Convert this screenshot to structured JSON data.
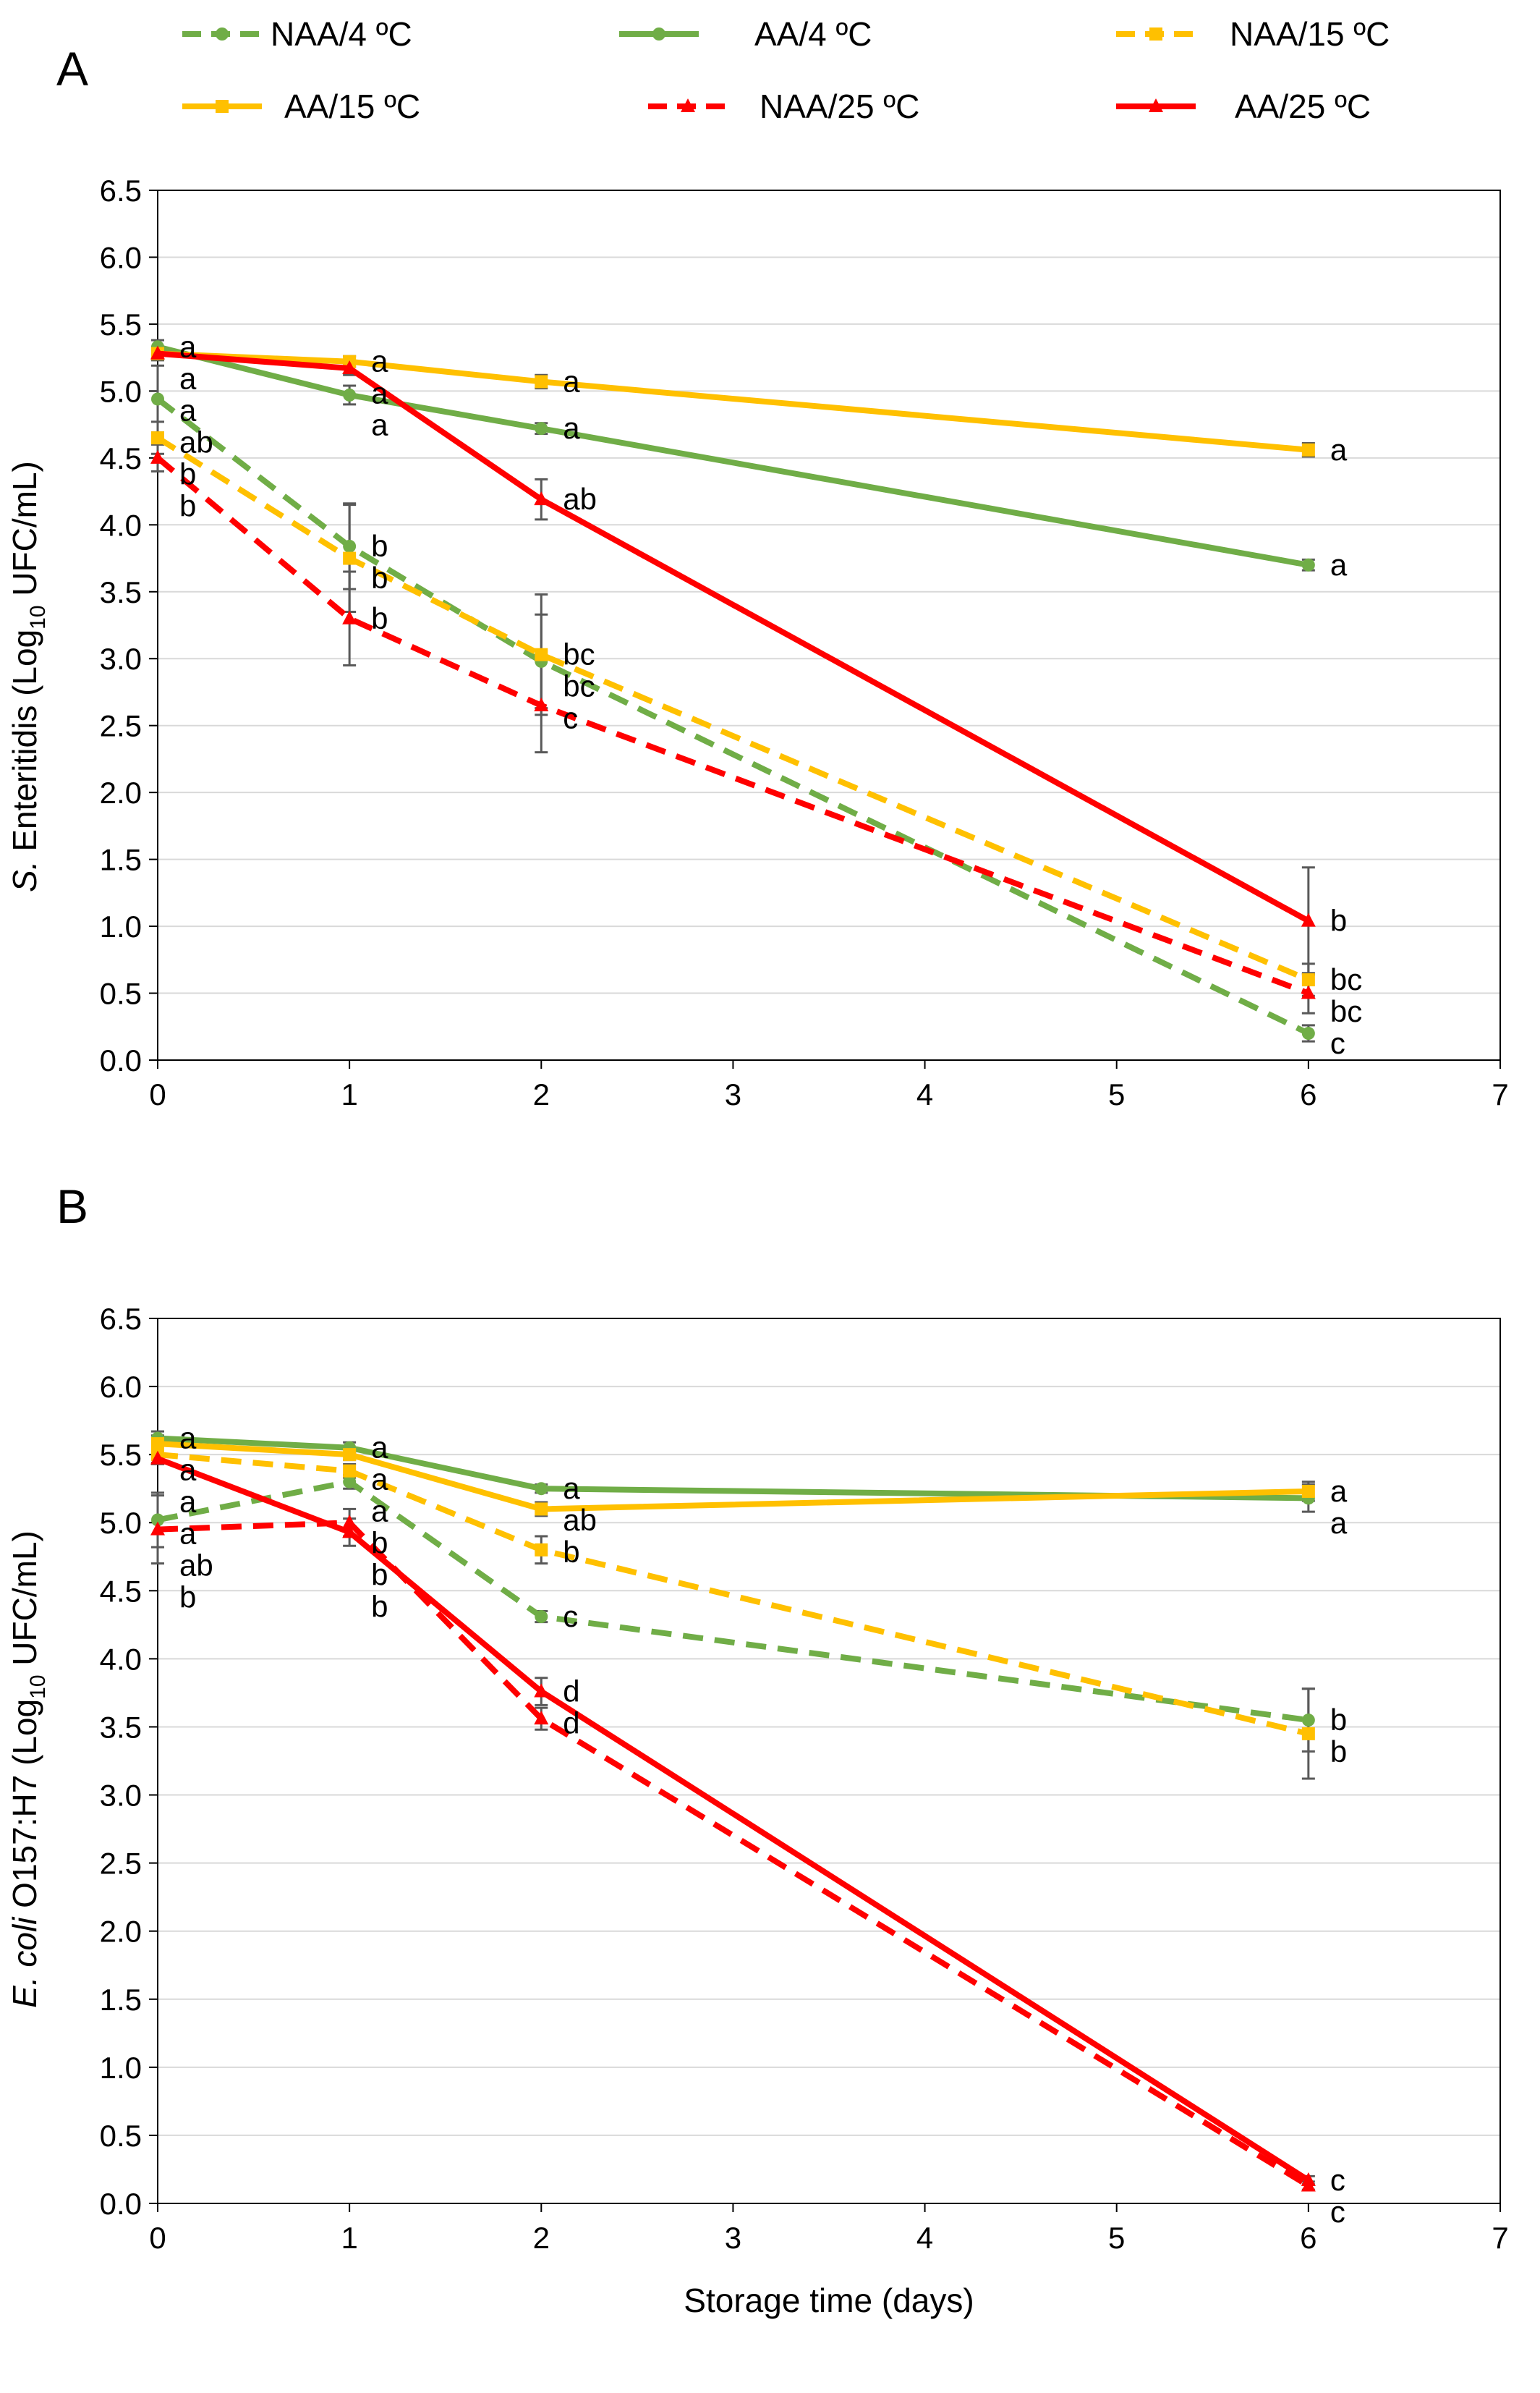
{
  "legend": {
    "entries": [
      {
        "key": "naa4",
        "label": "NAA/4 ºC",
        "color": "#70AD47",
        "dashed": true,
        "marker": "circle"
      },
      {
        "key": "aa4",
        "label": "AA/4 ºC",
        "color": "#70AD47",
        "dashed": false,
        "marker": "circle"
      },
      {
        "key": "naa15",
        "label": "NAA/15 ºC",
        "color": "#FFC000",
        "dashed": true,
        "marker": "square"
      },
      {
        "key": "aa15",
        "label": "AA/15 ºC",
        "color": "#FFC000",
        "dashed": false,
        "marker": "square"
      },
      {
        "key": "naa25",
        "label": "NAA/25 ºC",
        "color": "#FF0000",
        "dashed": true,
        "marker": "triangle"
      },
      {
        "key": "aa25",
        "label": "AA/25 ºC",
        "color": "#FF0000",
        "dashed": false,
        "marker": "triangle"
      }
    ]
  },
  "chart_data": [
    {
      "type": "line",
      "panel_label": "A",
      "ylabel_italic": "S.",
      "ylabel_rest": " Enteritidis (Log",
      "ylabel_sub": "10",
      "ylabel_end": " UFC/mL)",
      "xlabel": "",
      "xlim": [
        0,
        7
      ],
      "ylim": [
        0,
        6.5
      ],
      "xticks": [
        "0",
        "1",
        "2",
        "3",
        "4",
        "5",
        "6",
        "7"
      ],
      "yticks": [
        "0.0",
        "0.5",
        "1.0",
        "1.5",
        "2.0",
        "2.5",
        "3.0",
        "3.5",
        "4.0",
        "4.5",
        "5.0",
        "5.5",
        "6.0",
        "6.5"
      ],
      "x": [
        0,
        1,
        2,
        6
      ],
      "series": [
        {
          "key": "naa4",
          "values": [
            4.94,
            3.84,
            2.98,
            0.2
          ],
          "errors": [
            0.25,
            0.32,
            0.35,
            0.06
          ],
          "letters": [
            "ab",
            "b",
            "bc",
            "c"
          ]
        },
        {
          "key": "aa4",
          "values": [
            5.33,
            4.97,
            4.72,
            3.7
          ],
          "errors": [
            0.05,
            0.07,
            0.04,
            0.04
          ],
          "letters": [
            "a",
            "a",
            "a",
            "a"
          ]
        },
        {
          "key": "naa15",
          "values": [
            4.65,
            3.75,
            3.03,
            0.6
          ],
          "errors": [
            0.12,
            0.4,
            0.45,
            0.12
          ],
          "letters": [
            "b",
            "b",
            "bc",
            "bc"
          ]
        },
        {
          "key": "aa15",
          "values": [
            5.28,
            5.22,
            5.07,
            4.56
          ],
          "errors": [
            0.04,
            0.04,
            0.05,
            0.05
          ],
          "letters": [
            "a",
            "a",
            "a",
            "a"
          ]
        },
        {
          "key": "naa25",
          "values": [
            4.5,
            3.3,
            2.65,
            0.5
          ],
          "errors": [
            0.1,
            0.35,
            0.35,
            0.15
          ],
          "letters": [
            "b",
            "b",
            "c",
            "bc"
          ]
        },
        {
          "key": "aa25",
          "values": [
            5.28,
            5.17,
            4.19,
            1.04
          ],
          "errors": [
            0.05,
            0.05,
            0.15,
            0.4
          ],
          "letters": [
            "a",
            "a",
            "ab",
            "b"
          ]
        }
      ],
      "letter_order": {
        "0": [
          "aa4",
          "aa15",
          "aa25",
          "naa4",
          "naa15",
          "naa25"
        ],
        "1": [
          "aa15",
          "aa25",
          "aa4",
          "naa4",
          "naa15",
          "naa25"
        ],
        "2": [
          "aa15",
          "aa4",
          "aa25",
          "naa15",
          "naa4",
          "naa25"
        ],
        "6": [
          "aa15",
          "aa4",
          "aa25",
          "naa15",
          "naa25",
          "naa4"
        ]
      }
    },
    {
      "type": "line",
      "panel_label": "B",
      "ylabel_italic": "E. coli",
      "ylabel_rest": " O157:H7 (Log",
      "ylabel_sub": "10",
      "ylabel_end": " UFC/mL)",
      "xlabel": "Storage time (days)",
      "xlim": [
        0,
        7
      ],
      "ylim": [
        0,
        6.5
      ],
      "xticks": [
        "0",
        "1",
        "2",
        "3",
        "4",
        "5",
        "6",
        "7"
      ],
      "yticks": [
        "0.0",
        "0.5",
        "1.0",
        "1.5",
        "2.0",
        "2.5",
        "3.0",
        "3.5",
        "4.0",
        "4.5",
        "5.0",
        "5.5",
        "6.0",
        "6.5"
      ],
      "x": [
        0,
        1,
        2,
        6
      ],
      "series": [
        {
          "key": "naa4",
          "values": [
            5.02,
            5.3,
            4.31,
            3.55
          ],
          "errors": [
            0.2,
            0.05,
            0.04,
            0.23
          ],
          "letters": [
            "ab",
            "b",
            "c",
            "b"
          ]
        },
        {
          "key": "aa4",
          "values": [
            5.62,
            5.55,
            5.25,
            5.18
          ],
          "errors": [
            0.05,
            0.04,
            0.03,
            0.1
          ],
          "letters": [
            "a",
            "a",
            "a",
            "a"
          ]
        },
        {
          "key": "naa15",
          "values": [
            5.5,
            5.38,
            4.8,
            3.45
          ],
          "errors": [
            0.06,
            0.05,
            0.1,
            0.33
          ],
          "letters": [
            "a",
            "a",
            "b",
            "b"
          ]
        },
        {
          "key": "aa15",
          "values": [
            5.58,
            5.5,
            5.1,
            5.23
          ],
          "errors": [
            0.06,
            0.04,
            0.05,
            0.07
          ],
          "letters": [
            "a",
            "a",
            "ab",
            "a"
          ]
        },
        {
          "key": "naa25",
          "values": [
            4.95,
            5.0,
            3.56,
            0.13
          ],
          "errors": [
            0.25,
            0.1,
            0.08,
            0.03
          ],
          "letters": [
            "b",
            "b",
            "d",
            "c"
          ]
        },
        {
          "key": "aa25",
          "values": [
            5.47,
            4.93,
            3.76,
            0.17
          ],
          "errors": [
            0.04,
            0.1,
            0.1,
            0.03
          ],
          "letters": [
            "a",
            "b",
            "d",
            "c"
          ]
        }
      ],
      "letter_order": {
        "0": [
          "aa4",
          "aa15",
          "naa15",
          "aa25",
          "naa4",
          "naa25"
        ],
        "1": [
          "aa4",
          "aa15",
          "naa15",
          "naa4",
          "aa25",
          "naa25"
        ],
        "2": [
          "aa4",
          "aa15",
          "naa15",
          "naa4",
          "aa25",
          "naa25"
        ],
        "6": [
          "aa15",
          "aa4",
          "naa4",
          "naa15",
          "aa25",
          "naa25"
        ]
      }
    }
  ]
}
